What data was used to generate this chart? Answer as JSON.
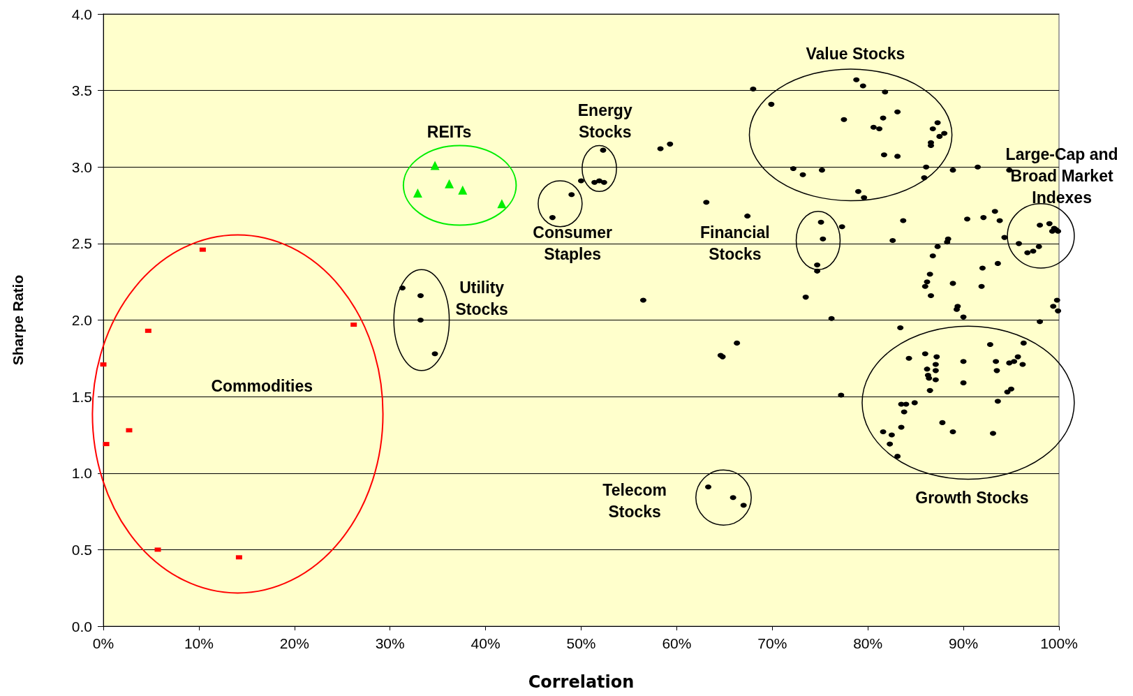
{
  "chart_data": {
    "type": "scatter",
    "xlabel": "Correlation",
    "ylabel": "Sharpe Ratio",
    "xlim": [
      0,
      100
    ],
    "xticks": [
      {
        "value": 0,
        "label": "0%"
      },
      {
        "value": 10,
        "label": "10%"
      },
      {
        "value": 20,
        "label": "20%"
      },
      {
        "value": 30,
        "label": "30%"
      },
      {
        "value": 40,
        "label": "40%"
      },
      {
        "value": 50,
        "label": "50%"
      },
      {
        "value": 60,
        "label": "60%"
      },
      {
        "value": 70,
        "label": "70%"
      },
      {
        "value": 80,
        "label": "80%"
      },
      {
        "value": 90,
        "label": "90%"
      },
      {
        "value": 100,
        "label": "100%"
      }
    ],
    "ylim": [
      0,
      4
    ],
    "yticks": [
      {
        "value": 0,
        "label": "0.0"
      },
      {
        "value": 0.5,
        "label": "0.5"
      },
      {
        "value": 1,
        "label": "1.0"
      },
      {
        "value": 1.5,
        "label": "1.5"
      },
      {
        "value": 2,
        "label": "2.0"
      },
      {
        "value": 2.5,
        "label": "2.5"
      },
      {
        "value": 3,
        "label": "3.0"
      },
      {
        "value": 3.5,
        "label": "3.5"
      },
      {
        "value": 4,
        "label": "4.0"
      }
    ],
    "grid": "y",
    "series": [
      {
        "color": "#ff0000",
        "marker": "square",
        "x": [
          0,
          0.3,
          2.7,
          4.7,
          5.7,
          10.4,
          14.2,
          26.2
        ],
        "values": [
          1.71,
          1.19,
          1.28,
          1.93,
          0.5,
          2.46,
          0.45,
          1.97
        ]
      },
      {
        "color": "#00ee00",
        "marker": "triangle",
        "x": [
          32.9,
          34.7,
          36.2,
          37.6,
          41.7
        ],
        "values": [
          2.83,
          3.01,
          2.89,
          2.85,
          2.76
        ]
      },
      {
        "color": "#000000",
        "marker": "circle",
        "x": [
          31.3,
          33.2,
          33.2,
          34.7,
          47.0,
          49.0,
          50.0,
          52.3,
          51.4,
          51.9,
          52.4,
          56.5,
          58.3,
          59.3,
          63.1,
          67.4,
          64.6,
          64.8,
          66.3,
          68.0,
          69.9,
          63.3,
          65.9,
          67.0,
          72.2,
          73.2,
          75.2,
          77.5,
          78.8,
          79.5,
          80.6,
          81.2,
          81.6,
          81.8,
          81.7,
          83.1,
          83.1,
          85.9,
          86.1,
          86.6,
          86.6,
          86.8,
          87.3,
          87.5,
          88.0,
          88.9,
          91.5,
          79.0,
          79.6,
          75.1,
          75.3,
          74.7,
          74.7,
          73.5,
          76.2,
          77.3,
          77.2,
          82.6,
          83.7,
          83.4,
          86.0,
          86.2,
          86.5,
          86.6,
          86.8,
          87.3,
          88.3,
          88.4,
          88.9,
          89.3,
          89.4,
          90.0,
          90.4,
          91.9,
          92.0,
          92.1,
          93.3,
          93.8,
          93.6,
          94.3,
          94.8,
          95.8,
          96.7,
          97.3,
          97.9,
          98.0,
          99.4,
          99.8,
          99.9,
          98.0,
          99.0,
          99.3,
          99.5,
          99.7,
          99.9,
          81.6,
          82.3,
          82.5,
          83.1,
          83.5,
          83.5,
          84.0,
          84.3,
          83.8,
          84.9,
          86.0,
          86.2,
          86.3,
          86.4,
          86.5,
          87.2,
          87.1,
          87.1,
          87.1,
          87.8,
          88.9,
          90.0,
          90.0,
          92.8,
          93.1,
          93.4,
          93.5,
          93.6,
          94.6,
          94.8,
          95.0,
          95.3,
          95.7,
          96.3,
          96.2
        ],
        "values": [
          2.21,
          2.16,
          2.0,
          1.78,
          2.67,
          2.82,
          2.91,
          3.11,
          2.9,
          2.91,
          2.9,
          2.13,
          3.12,
          3.15,
          2.77,
          2.68,
          1.77,
          1.76,
          1.85,
          3.51,
          3.41,
          0.91,
          0.84,
          0.79,
          2.99,
          2.95,
          2.98,
          3.31,
          3.57,
          3.53,
          3.26,
          3.25,
          3.32,
          3.49,
          3.08,
          3.36,
          3.07,
          2.93,
          3.0,
          3.14,
          3.16,
          3.25,
          3.29,
          3.2,
          3.22,
          2.98,
          3.0,
          2.84,
          2.8,
          2.64,
          2.53,
          2.36,
          2.32,
          2.15,
          2.01,
          2.61,
          1.51,
          2.52,
          2.65,
          1.95,
          2.22,
          2.25,
          2.3,
          2.16,
          2.42,
          2.48,
          2.51,
          2.53,
          2.24,
          2.07,
          2.09,
          2.02,
          2.66,
          2.22,
          2.34,
          2.67,
          2.71,
          2.65,
          2.37,
          2.54,
          2.98,
          2.5,
          2.44,
          2.45,
          2.48,
          1.99,
          2.09,
          2.13,
          2.06,
          2.62,
          2.63,
          2.58,
          2.6,
          2.59,
          2.58,
          1.27,
          1.19,
          1.25,
          1.11,
          1.3,
          1.45,
          1.45,
          1.75,
          1.4,
          1.46,
          1.78,
          1.68,
          1.64,
          1.62,
          1.54,
          1.76,
          1.71,
          1.67,
          1.61,
          1.33,
          1.27,
          1.73,
          1.59,
          1.84,
          1.26,
          1.73,
          1.67,
          1.47,
          1.53,
          1.72,
          1.55,
          1.73,
          1.76,
          1.85,
          1.71
        ]
      }
    ],
    "annotations": [
      "Commodities",
      "REITs",
      "Utility\nStocks",
      "Consumer\nStaples",
      "Energy\nStocks",
      "Financial\nStocks",
      "Telecom\nStocks",
      "Value Stocks",
      "Large-Cap and\nBroad Market\nIndexes",
      "Growth Stocks"
    ]
  }
}
